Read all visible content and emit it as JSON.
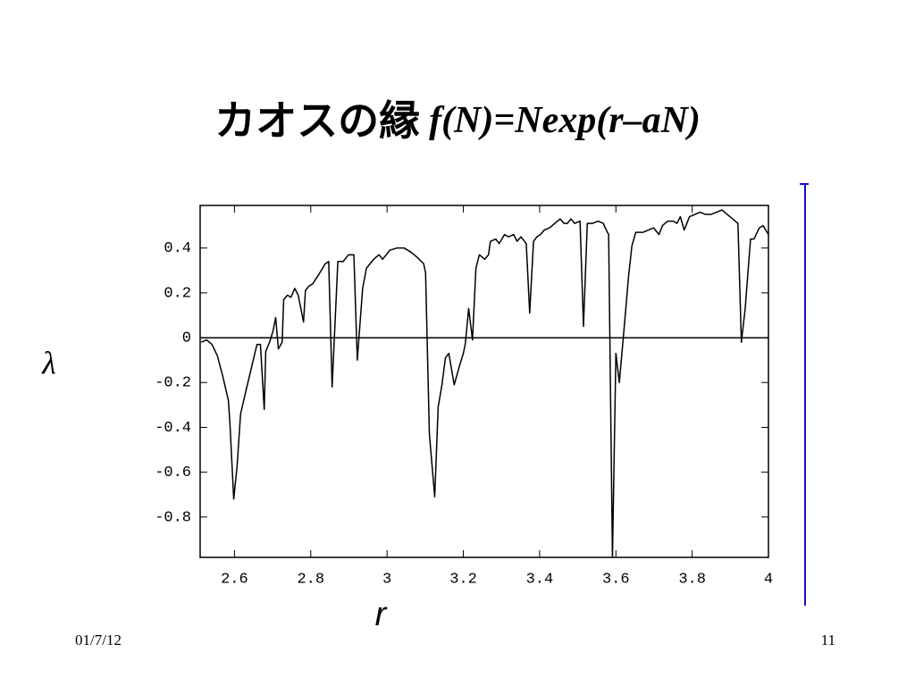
{
  "chart_data": {
    "type": "line",
    "title": "カオスの縁",
    "formula": "f(N)=Nexp(r–aN)",
    "xlabel": "r",
    "ylabel": "λ",
    "x": [
      2.513,
      2.527,
      2.541,
      2.555,
      2.569,
      2.584,
      2.588,
      2.598,
      2.607,
      2.616,
      2.631,
      2.645,
      2.659,
      2.668,
      2.678,
      2.682,
      2.692,
      2.701,
      2.708,
      2.715,
      2.725,
      2.729,
      2.739,
      2.748,
      2.758,
      2.767,
      2.781,
      2.786,
      2.795,
      2.805,
      2.824,
      2.838,
      2.847,
      2.856,
      2.871,
      2.885,
      2.899,
      2.913,
      2.922,
      2.936,
      2.946,
      2.965,
      2.979,
      2.988,
      2.998,
      3.007,
      3.026,
      3.045,
      3.064,
      3.078,
      3.096,
      3.101,
      3.111,
      3.125,
      3.134,
      3.144,
      3.153,
      3.162,
      3.176,
      3.191,
      3.2,
      3.205,
      3.214,
      3.224,
      3.233,
      3.242,
      3.256,
      3.266,
      3.271,
      3.285,
      3.294,
      3.308,
      3.318,
      3.332,
      3.341,
      3.351,
      3.365,
      3.374,
      3.384,
      3.393,
      3.402,
      3.412,
      3.426,
      3.44,
      3.454,
      3.464,
      3.473,
      3.482,
      3.492,
      3.506,
      3.515,
      3.525,
      3.539,
      3.553,
      3.567,
      3.572,
      3.581,
      3.591,
      3.6,
      3.609,
      3.624,
      3.633,
      3.642,
      3.652,
      3.671,
      3.685,
      3.699,
      3.713,
      3.722,
      3.736,
      3.751,
      3.76,
      3.769,
      3.779,
      3.793,
      3.807,
      3.821,
      3.835,
      3.849,
      3.864,
      3.878,
      3.892,
      3.906,
      3.92,
      3.929,
      3.939,
      3.953,
      3.962,
      3.976,
      3.986,
      4.0
    ],
    "series": [
      {
        "color": "#000000",
        "values": [
          -0.02,
          -0.01,
          -0.03,
          -0.08,
          -0.17,
          -0.28,
          -0.38,
          -0.72,
          -0.57,
          -0.34,
          -0.23,
          -0.13,
          -0.03,
          -0.03,
          -0.32,
          -0.06,
          -0.02,
          0.03,
          0.09,
          -0.05,
          -0.02,
          0.17,
          0.19,
          0.18,
          0.22,
          0.19,
          0.07,
          0.21,
          0.23,
          0.24,
          0.29,
          0.33,
          0.34,
          -0.22,
          0.34,
          0.34,
          0.37,
          0.37,
          -0.1,
          0.22,
          0.31,
          0.35,
          0.37,
          0.35,
          0.37,
          0.39,
          0.4,
          0.4,
          0.38,
          0.36,
          0.33,
          0.29,
          -0.43,
          -0.71,
          -0.31,
          -0.21,
          -0.09,
          -0.07,
          -0.21,
          -0.12,
          -0.07,
          -0.03,
          0.13,
          -0.01,
          0.31,
          0.37,
          0.35,
          0.37,
          0.43,
          0.44,
          0.42,
          0.46,
          0.45,
          0.46,
          0.43,
          0.45,
          0.42,
          0.11,
          0.43,
          0.45,
          0.46,
          0.48,
          0.49,
          0.51,
          0.53,
          0.51,
          0.51,
          0.53,
          0.51,
          0.52,
          0.05,
          0.51,
          0.51,
          0.52,
          0.51,
          0.49,
          0.46,
          -0.98,
          -0.07,
          -0.2,
          0.09,
          0.27,
          0.41,
          0.47,
          0.47,
          0.48,
          0.49,
          0.46,
          0.5,
          0.52,
          0.52,
          0.51,
          0.54,
          0.48,
          0.54,
          0.55,
          0.56,
          0.55,
          0.55,
          0.56,
          0.57,
          0.55,
          0.53,
          0.51,
          -0.02,
          0.13,
          0.44,
          0.44,
          0.49,
          0.5,
          0.46
        ]
      }
    ],
    "hlines": [
      0
    ],
    "xlim": [
      2.51,
      4.0
    ],
    "ylim": [
      -0.98,
      0.59
    ],
    "xticks": [
      2.6,
      2.8,
      3,
      3.2,
      3.4,
      3.6,
      3.8,
      4
    ],
    "yticks": [
      0.4,
      0.2,
      0,
      -0.2,
      -0.4,
      -0.6,
      -0.8
    ]
  },
  "footer": {
    "date": "01/7/12",
    "page": "11"
  }
}
